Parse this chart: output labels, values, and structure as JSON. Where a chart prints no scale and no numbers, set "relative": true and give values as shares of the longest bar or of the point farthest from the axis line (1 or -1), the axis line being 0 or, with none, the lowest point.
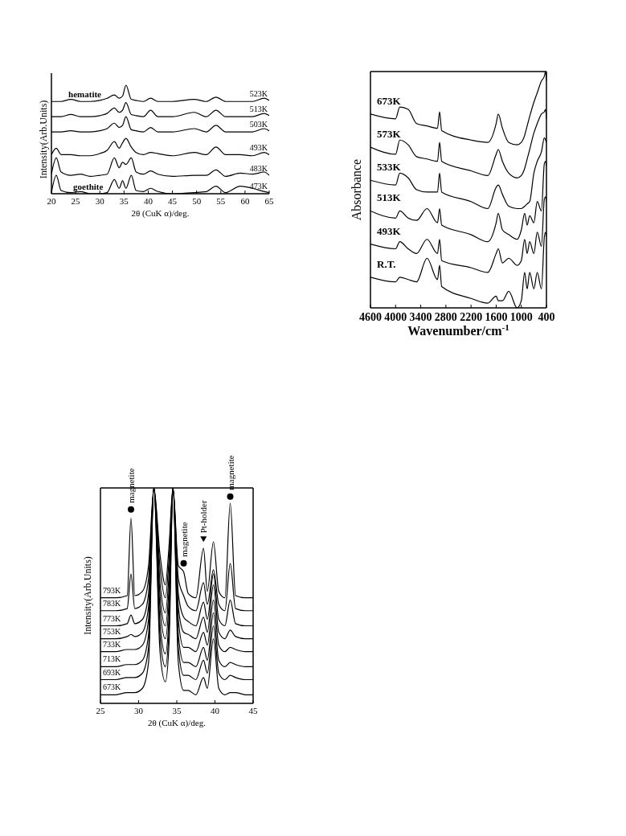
{
  "chart_data": [
    {
      "type": "line",
      "relative": true,
      "xlabel": "2θ (CuK α)/deg.",
      "ylabel": "Intensity(Arb.Units)",
      "xlim": [
        20,
        65
      ],
      "xticks": [
        20,
        25,
        30,
        35,
        40,
        45,
        50,
        55,
        60,
        65
      ],
      "x": [
        20,
        21,
        22,
        24,
        26,
        28,
        30,
        31.5,
        33,
        34,
        34.7,
        35.4,
        36.5,
        37.5,
        39,
        40.5,
        42,
        45,
        49.5,
        52,
        54,
        56,
        59,
        61.5,
        64,
        65
      ],
      "series": [
        {
          "name": "523K",
          "color": "#000000",
          "values": [
            0.85,
            0.85,
            0.85,
            0.87,
            0.85,
            0.85,
            0.86,
            0.88,
            0.91,
            0.88,
            0.9,
            1.0,
            0.87,
            0.86,
            0.85,
            0.88,
            0.85,
            0.85,
            0.87,
            0.85,
            0.89,
            0.85,
            0.85,
            0.85,
            0.88,
            0.86
          ]
        },
        {
          "name": "513K",
          "color": "#000000",
          "values": [
            0.71,
            0.71,
            0.71,
            0.73,
            0.71,
            0.71,
            0.72,
            0.74,
            0.79,
            0.75,
            0.77,
            0.84,
            0.73,
            0.72,
            0.71,
            0.77,
            0.71,
            0.71,
            0.75,
            0.71,
            0.77,
            0.71,
            0.71,
            0.71,
            0.74,
            0.72
          ]
        },
        {
          "name": "503K",
          "color": "#000000",
          "values": [
            0.57,
            0.57,
            0.57,
            0.58,
            0.57,
            0.57,
            0.58,
            0.6,
            0.65,
            0.61,
            0.63,
            0.71,
            0.59,
            0.58,
            0.57,
            0.61,
            0.57,
            0.57,
            0.6,
            0.57,
            0.63,
            0.57,
            0.57,
            0.57,
            0.6,
            0.58
          ]
        },
        {
          "name": "493K",
          "color": "#000000",
          "values": [
            0.36,
            0.42,
            0.36,
            0.36,
            0.35,
            0.35,
            0.37,
            0.4,
            0.48,
            0.42,
            0.47,
            0.51,
            0.43,
            0.38,
            0.36,
            0.38,
            0.37,
            0.35,
            0.38,
            0.36,
            0.43,
            0.36,
            0.36,
            0.35,
            0.38,
            0.36
          ]
        },
        {
          "name": "483K",
          "color": "#000000",
          "values": [
            0.18,
            0.33,
            0.2,
            0.17,
            0.18,
            0.16,
            0.17,
            0.18,
            0.33,
            0.24,
            0.29,
            0.27,
            0.33,
            0.2,
            0.18,
            0.21,
            0.18,
            0.16,
            0.17,
            0.17,
            0.22,
            0.16,
            0.19,
            0.18,
            0.2,
            0.17
          ]
        },
        {
          "name": "473K",
          "color": "#000000",
          "values": [
            0.01,
            0.17,
            0.03,
            0.01,
            0.02,
            0,
            0,
            0.01,
            0.13,
            0.05,
            0.12,
            0.05,
            0.17,
            0.03,
            0.02,
            0.05,
            0.02,
            0,
            0.01,
            0.02,
            0.07,
            0.01,
            0.07,
            0.05,
            0.02,
            0.01
          ]
        }
      ],
      "annotations": [
        {
          "text": "hematite",
          "x": 23.5,
          "y": 0.89
        },
        {
          "text": "goethite",
          "x": 24.5,
          "y": 0.04
        }
      ]
    },
    {
      "type": "line",
      "relative": true,
      "xlabel": "Wavenumber/cm$^{-1}$",
      "ylabel": "Absorbance",
      "xlim": [
        4600,
        400
      ],
      "xticks": [
        4600,
        4000,
        3400,
        2800,
        2200,
        1600,
        1000,
        400
      ],
      "x": [
        4600,
        4000,
        3900,
        3700,
        3500,
        3250,
        3000,
        2950,
        2900,
        2200,
        1800,
        1600,
        1550,
        1450,
        1300,
        1100,
        1000,
        920,
        860,
        800,
        700,
        620,
        520,
        450,
        420,
        400
      ],
      "series": [
        {
          "name": "673K",
          "color": "#000000",
          "values": [
            0.82,
            0.8,
            0.85,
            0.84,
            0.78,
            0.77,
            0.76,
            0.83,
            0.75,
            0.71,
            0.7,
            0.78,
            0.82,
            0.76,
            0.7,
            0.69,
            0.7,
            0.73,
            0.77,
            0.81,
            0.87,
            0.91,
            0.96,
            0.98,
            1.0,
            0.96
          ]
        },
        {
          "name": "573K",
          "color": "#000000",
          "values": [
            0.68,
            0.65,
            0.71,
            0.69,
            0.64,
            0.63,
            0.62,
            0.7,
            0.62,
            0.58,
            0.56,
            0.65,
            0.67,
            0.62,
            0.57,
            0.55,
            0.56,
            0.59,
            0.63,
            0.67,
            0.74,
            0.78,
            0.82,
            0.83,
            0.84,
            0.8
          ]
        },
        {
          "name": "533K",
          "color": "#000000",
          "values": [
            0.54,
            0.52,
            0.57,
            0.55,
            0.5,
            0.49,
            0.49,
            0.57,
            0.49,
            0.45,
            0.42,
            0.51,
            0.52,
            0.48,
            0.43,
            0.42,
            0.42,
            0.43,
            0.44,
            0.45,
            0.57,
            0.62,
            0.66,
            0.72,
            0.71,
            0.7
          ]
        },
        {
          "name": "513K",
          "color": "#000000",
          "values": [
            0.41,
            0.38,
            0.41,
            0.38,
            0.37,
            0.42,
            0.36,
            0.42,
            0.35,
            0.31,
            0.28,
            0.36,
            0.4,
            0.33,
            0.31,
            0.29,
            0.33,
            0.4,
            0.35,
            0.39,
            0.36,
            0.45,
            0.41,
            0.61,
            0.62,
            0.6
          ]
        },
        {
          "name": "493K",
          "color": "#000000",
          "values": [
            0.27,
            0.25,
            0.28,
            0.25,
            0.23,
            0.29,
            0.23,
            0.29,
            0.2,
            0.17,
            0.15,
            0.23,
            0.25,
            0.19,
            0.21,
            0.18,
            0.2,
            0.29,
            0.23,
            0.28,
            0.23,
            0.32,
            0.26,
            0.46,
            0.47,
            0.45
          ]
        },
        {
          "name": "R.T.",
          "color": "#000000",
          "values": [
            0.13,
            0.11,
            0.13,
            0.12,
            0.11,
            0.21,
            0.12,
            0.18,
            0.09,
            0.04,
            0.02,
            0.05,
            0.03,
            0.03,
            0.07,
            0,
            0.03,
            0.15,
            0.08,
            0.15,
            0.08,
            0.15,
            0.08,
            0.3,
            0.32,
            0.3
          ]
        }
      ]
    },
    {
      "type": "line",
      "relative": true,
      "xlabel": "2θ (CuK α)/deg.",
      "ylabel": "Intensity(Arb.Units)",
      "xlim": [
        25,
        45
      ],
      "xticks": [
        25,
        30,
        35,
        40,
        45
      ],
      "x": [
        25,
        27,
        28.5,
        29,
        29.5,
        30.5,
        31.3,
        32,
        32.8,
        33.5,
        34,
        34.5,
        35.2,
        35.9,
        36.5,
        37.5,
        38.5,
        39,
        39.8,
        40.5,
        41.3,
        42,
        42.7,
        44,
        45
      ],
      "series": [
        {
          "name": "793K",
          "color": "#000000",
          "values": [
            0.49,
            0.49,
            0.5,
            0.86,
            0.5,
            0.52,
            0.64,
            1,
            0.69,
            0.55,
            0.74,
            1,
            0.64,
            0.61,
            0.51,
            0.49,
            0.72,
            0.52,
            0.75,
            0.52,
            0.49,
            0.93,
            0.5,
            0.49,
            0.49
          ]
        },
        {
          "name": "783K",
          "color": "#000000",
          "values": [
            0.43,
            0.43,
            0.44,
            0.6,
            0.44,
            0.46,
            0.58,
            1,
            0.63,
            0.49,
            0.68,
            1,
            0.58,
            0.5,
            0.45,
            0.43,
            0.56,
            0.46,
            0.62,
            0.46,
            0.43,
            0.65,
            0.44,
            0.43,
            0.43
          ]
        },
        {
          "name": "773K",
          "color": "#000000",
          "values": [
            0.36,
            0.36,
            0.37,
            0.41,
            0.37,
            0.39,
            0.51,
            1,
            0.56,
            0.42,
            0.61,
            1,
            0.51,
            0.4,
            0.38,
            0.36,
            0.47,
            0.39,
            0.6,
            0.39,
            0.36,
            0.48,
            0.37,
            0.36,
            0.36
          ]
        },
        {
          "name": "753K",
          "color": "#000000",
          "values": [
            0.3,
            0.3,
            0.31,
            0.32,
            0.31,
            0.33,
            0.45,
            1,
            0.5,
            0.36,
            0.55,
            1,
            0.45,
            0.33,
            0.32,
            0.3,
            0.4,
            0.33,
            0.55,
            0.33,
            0.3,
            0.34,
            0.31,
            0.3,
            0.3
          ]
        },
        {
          "name": "733K",
          "color": "#000000",
          "values": [
            0.24,
            0.24,
            0.25,
            0.25,
            0.25,
            0.27,
            0.39,
            1,
            0.44,
            0.3,
            0.49,
            1,
            0.39,
            0.26,
            0.26,
            0.24,
            0.33,
            0.27,
            0.48,
            0.27,
            0.24,
            0.26,
            0.25,
            0.24,
            0.24
          ]
        },
        {
          "name": "713K",
          "color": "#000000",
          "values": [
            0.17,
            0.17,
            0.18,
            0.18,
            0.18,
            0.2,
            0.32,
            1,
            0.37,
            0.23,
            0.42,
            1,
            0.32,
            0.19,
            0.19,
            0.17,
            0.26,
            0.2,
            0.42,
            0.2,
            0.17,
            0.19,
            0.18,
            0.17,
            0.17
          ]
        },
        {
          "name": "693K",
          "color": "#000000",
          "values": [
            0.11,
            0.11,
            0.12,
            0.12,
            0.12,
            0.14,
            0.26,
            1,
            0.31,
            0.17,
            0.36,
            1,
            0.26,
            0.13,
            0.13,
            0.11,
            0.2,
            0.14,
            0.36,
            0.14,
            0.11,
            0.13,
            0.12,
            0.11,
            0.11
          ]
        },
        {
          "name": "673K",
          "color": "#000000",
          "values": [
            0.04,
            0.04,
            0.05,
            0.05,
            0.05,
            0.07,
            0.19,
            1,
            0.24,
            0.1,
            0.29,
            1,
            0.19,
            0.06,
            0.06,
            0.04,
            0.12,
            0.07,
            0.3,
            0.07,
            0.04,
            0.05,
            0.05,
            0.04,
            0.04
          ]
        }
      ],
      "annotations": [
        {
          "text": "magnetite",
          "x": 29,
          "y": 0.9
        },
        {
          "text": "magnetite",
          "x": 35.9,
          "y": 0.65
        },
        {
          "text": "Pt-holder",
          "x": 38.5,
          "y": 0.76
        },
        {
          "text": "magnetite",
          "x": 42,
          "y": 0.96
        }
      ]
    }
  ]
}
